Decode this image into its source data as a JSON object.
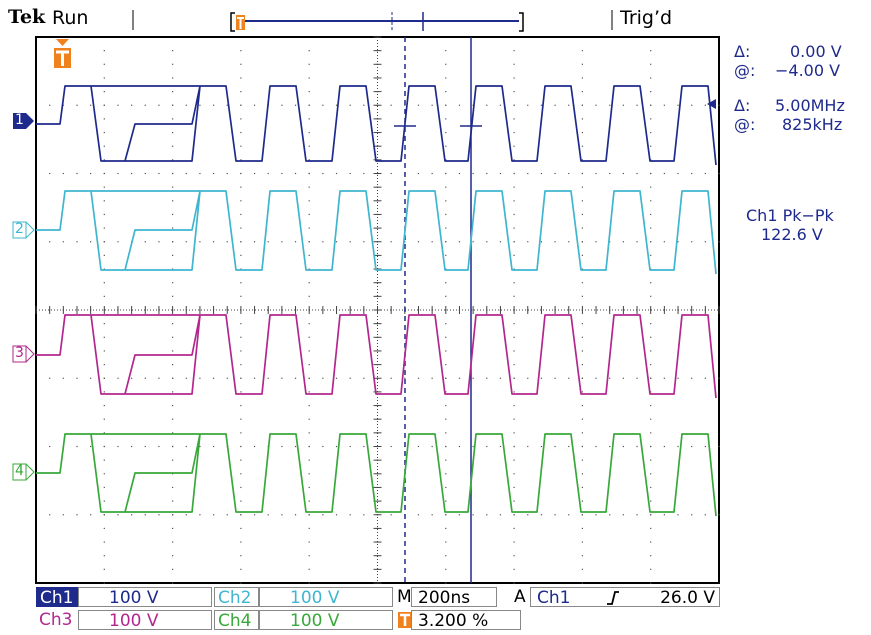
{
  "status": {
    "brand": "Tek",
    "mode": "Run",
    "trigger": "Trig’d"
  },
  "readouts": {
    "volt_delta_label": "Δ:",
    "volt_delta": "0.00 V",
    "volt_at_label": "@:",
    "volt_at": "−4.00 V",
    "freq_delta_label": "Δ:",
    "freq_delta": "5.00MHz",
    "freq_at_label": "@:",
    "freq_at": "825kHz",
    "measure_label": "Ch1 Pk−Pk",
    "measure_value": "122.6 V"
  },
  "channels": [
    {
      "id": "ch1",
      "label": "1",
      "name": "Ch1",
      "scale": "100 V",
      "color": "#1e2a8c"
    },
    {
      "id": "ch2",
      "label": "2",
      "name": "Ch2",
      "scale": "100 V",
      "color": "#3fb5cf"
    },
    {
      "id": "ch3",
      "label": "3",
      "name": "Ch3",
      "scale": "100 V",
      "color": "#b2278e"
    },
    {
      "id": "ch4",
      "label": "4",
      "name": "Ch4",
      "scale": "100 V",
      "color": "#39a83a"
    }
  ],
  "timebase": {
    "m_label": "M",
    "value": "200ns",
    "a_label": "A",
    "trigger_source": "Ch1",
    "trigger_slope": "rising-edge-icon",
    "trigger_level": "26.0 V",
    "trigger_position": "3.200 %"
  },
  "chart_data": {
    "type": "line",
    "grid": true,
    "x_divisions": 10,
    "y_divisions": 8,
    "series": [
      {
        "id": "ch1",
        "color": "#1e2a8c"
      },
      {
        "id": "ch2",
        "color": "#3fb5cf"
      },
      {
        "id": "ch3",
        "color": "#b2278e"
      },
      {
        "id": "ch4",
        "color": "#39a83a"
      }
    ]
  }
}
